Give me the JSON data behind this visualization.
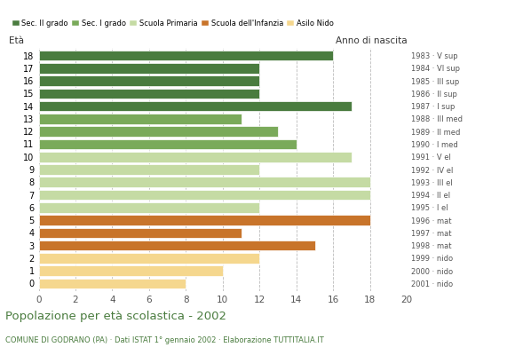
{
  "ages": [
    18,
    17,
    16,
    15,
    14,
    13,
    12,
    11,
    10,
    9,
    8,
    7,
    6,
    5,
    4,
    3,
    2,
    1,
    0
  ],
  "values": [
    16,
    12,
    12,
    12,
    17,
    11,
    13,
    14,
    17,
    12,
    18,
    18,
    12,
    18,
    11,
    15,
    12,
    10,
    8
  ],
  "anno_nascita": [
    "1983 · V sup",
    "1984 · VI sup",
    "1985 · III sup",
    "1986 · II sup",
    "1987 · I sup",
    "1988 · III med",
    "1989 · II med",
    "1990 · I med",
    "1991 · V el",
    "1992 · IV el",
    "1993 · III el",
    "1994 · II el",
    "1995 · I el",
    "1996 · mat",
    "1997 · mat",
    "1998 · mat",
    "1999 · nido",
    "2000 · nido",
    "2001 · nido"
  ],
  "age_colors": {
    "18": "#4a7c3f",
    "17": "#4a7c3f",
    "16": "#4a7c3f",
    "15": "#4a7c3f",
    "14": "#4a7c3f",
    "13": "#7aaa5a",
    "12": "#7aaa5a",
    "11": "#7aaa5a",
    "10": "#c5dba4",
    "9": "#c5dba4",
    "8": "#c5dba4",
    "7": "#c5dba4",
    "6": "#c5dba4",
    "5": "#c8742a",
    "4": "#c8742a",
    "3": "#c8742a",
    "2": "#f5d78e",
    "1": "#f5d78e",
    "0": "#f5d78e"
  },
  "legend_labels": [
    "Sec. II grado",
    "Sec. I grado",
    "Scuola Primaria",
    "Scuola dell'Infanzia",
    "Asilo Nido"
  ],
  "legend_colors": [
    "#4a7c3f",
    "#7aaa5a",
    "#c5dba4",
    "#c8742a",
    "#f5d78e"
  ],
  "xlim": [
    0,
    20
  ],
  "xticks": [
    0,
    2,
    4,
    6,
    8,
    10,
    12,
    14,
    16,
    18,
    20
  ],
  "ylabel": "Età",
  "anno_label": "Anno di nascita",
  "title": "Popolazione per età scolastica - 2002",
  "subtitle": "COMUNE DI GODRANO (PA) · Dati ISTAT 1° gennaio 2002 · Elaborazione TUTTITALIA.IT",
  "title_color": "#4a7c3f",
  "subtitle_color": "#4a7c3f",
  "background_color": "#ffffff",
  "bar_height": 0.82,
  "grid_color": "#bbbbbb"
}
